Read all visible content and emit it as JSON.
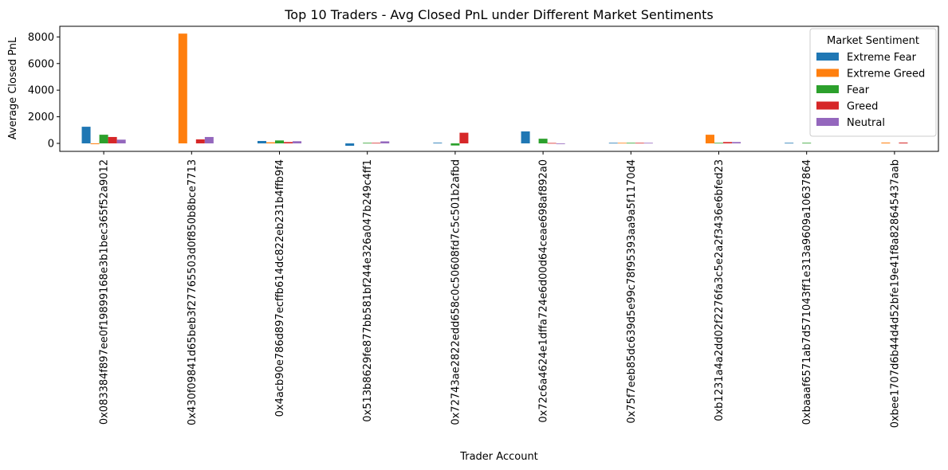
{
  "chart_data": {
    "type": "bar",
    "title": "Top 10 Traders - Avg Closed PnL under Different Market Sentiments",
    "xlabel": "Trader Account",
    "ylabel": "Average Closed PnL",
    "ylim": [
      -600,
      8800
    ],
    "yticks": [
      0,
      2000,
      4000,
      6000,
      8000
    ],
    "grid": false,
    "legend_placement": "top-right",
    "legend_title": "Market Sentiment",
    "categories": [
      "0x083384f897ee0f19899168e3b1bec365f52a9012",
      "0x430f09841d65beb3f27765503d0f850b8bce7713",
      "0x4acb90e786d897ecffb614dc822eb231b4ffb9f4",
      "0x513b8629fe877bb581bf244e326a047b249c4ff1",
      "0x72743ae2822edd658c0c50608fd7c5c501b2afbd",
      "0x72c6a4624e1dffa724e6d00d64ceae698af892a0",
      "0x75f7eeb85dc639d5e99c78f95393aa9a5f1170d4",
      "0xb1231a4a2dd02f2276fa3c5e2a2f3436e6bfed23",
      "0xbaaaf6571ab7d571043ff1e313a9609a10637864",
      "0xbee1707d6b44d4d52bfe19e41f8a828645437aab"
    ],
    "series": [
      {
        "name": "Extreme Fear",
        "color": "#1f77b4",
        "values": [
          1250,
          0,
          180,
          -180,
          50,
          900,
          40,
          0,
          40,
          0
        ]
      },
      {
        "name": "Extreme Greed",
        "color": "#ff7f0e",
        "values": [
          -60,
          8250,
          80,
          0,
          0,
          0,
          40,
          650,
          0,
          60
        ]
      },
      {
        "name": "Fear",
        "color": "#2ca02c",
        "values": [
          650,
          0,
          220,
          40,
          -160,
          350,
          40,
          40,
          40,
          0
        ]
      },
      {
        "name": "Greed",
        "color": "#d62728",
        "values": [
          480,
          300,
          100,
          40,
          800,
          30,
          40,
          100,
          0,
          60
        ]
      },
      {
        "name": "Neutral",
        "color": "#9467bd",
        "values": [
          280,
          480,
          160,
          150,
          0,
          -50,
          40,
          100,
          0,
          0
        ]
      }
    ]
  }
}
